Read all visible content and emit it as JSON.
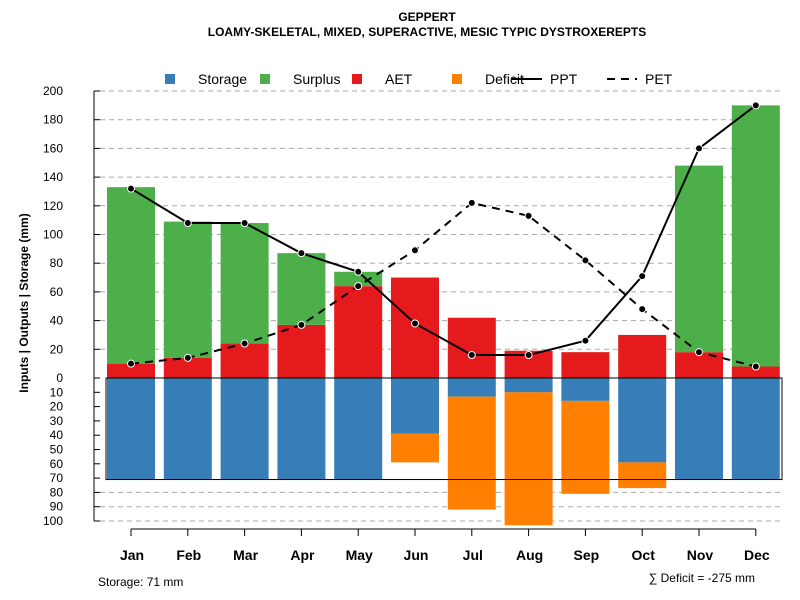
{
  "chart_data": {
    "type": "bar",
    "title": "GEPPERT",
    "subtitle": "LOAMY-SKELETAL, MIXED, SUPERACTIVE, MESIC TYPIC DYSTROXEREPTS",
    "ylabel": "Inputs | Outputs | Storage    (mm)",
    "categories": [
      "Jan",
      "Feb",
      "Mar",
      "Apr",
      "May",
      "Jun",
      "Jul",
      "Aug",
      "Sep",
      "Oct",
      "Nov",
      "Dec"
    ],
    "upper_ylim": [
      0,
      200
    ],
    "upper_ticks": [
      0,
      20,
      40,
      60,
      80,
      100,
      120,
      140,
      160,
      180,
      200
    ],
    "lower_ylim": [
      0,
      100
    ],
    "lower_ticks": [
      10,
      20,
      30,
      40,
      50,
      60,
      70,
      80,
      90,
      100
    ],
    "legend": [
      {
        "label": "Storage",
        "kind": "box",
        "color": "#377EB8"
      },
      {
        "label": "Surplus",
        "kind": "box",
        "color": "#4DAF4A"
      },
      {
        "label": "AET",
        "kind": "box",
        "color": "#E41A1C"
      },
      {
        "label": "Deficit",
        "kind": "box",
        "color": "#FF7F00"
      },
      {
        "label": "PPT",
        "kind": "solid",
        "color": "#000000"
      },
      {
        "label": "PET",
        "kind": "dashed",
        "color": "#000000"
      }
    ],
    "series": [
      {
        "name": "AET",
        "color": "#E41A1C",
        "values": [
          10,
          14,
          24,
          37,
          64,
          70,
          42,
          19,
          18,
          30,
          18,
          8
        ]
      },
      {
        "name": "Surplus",
        "color": "#4DAF4A",
        "values": [
          123,
          95,
          84,
          50,
          10,
          0,
          0,
          0,
          0,
          0,
          130,
          182
        ]
      },
      {
        "name": "Storage",
        "color": "#377EB8",
        "values": [
          71,
          71,
          71,
          71,
          71,
          39,
          13,
          10,
          16,
          59,
          71,
          71
        ]
      },
      {
        "name": "Deficit",
        "color": "#FF7F00",
        "values": [
          0,
          0,
          0,
          0,
          0,
          20,
          79,
          93,
          65,
          18,
          0,
          0
        ]
      },
      {
        "name": "PPT",
        "color": "#000000",
        "values": [
          132,
          108,
          108,
          87,
          74,
          38,
          16,
          16,
          26,
          71,
          160,
          190
        ]
      },
      {
        "name": "PET",
        "color": "#000000",
        "values": [
          10,
          14,
          24,
          37,
          64,
          89,
          122,
          113,
          82,
          48,
          18,
          8
        ]
      }
    ],
    "storage_capacity": 71,
    "footer_left": "Storage: 71 mm",
    "footer_right": "∑ Deficit = -275 mm"
  }
}
